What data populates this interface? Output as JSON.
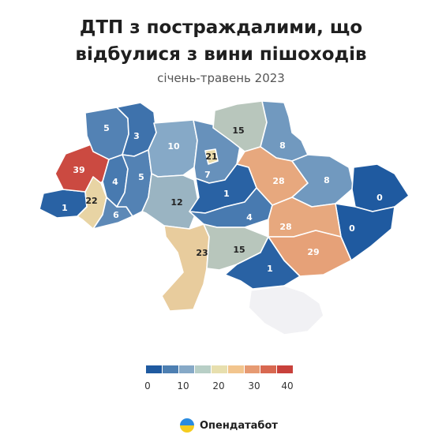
{
  "header": {
    "title_line1": "ДТП з постраждалими, що",
    "title_line2": "відбулися з вини пішоходів",
    "subtitle": "січень-травень 2023"
  },
  "legend": {
    "ticks": [
      "0",
      "10",
      "20",
      "30",
      "40"
    ],
    "colors": [
      "#1f5aa0",
      "#4d7fb2",
      "#86a9c7",
      "#b8cfc6",
      "#e7dfae",
      "#f2c58e",
      "#e69a72",
      "#d86850",
      "#c8413b"
    ]
  },
  "brand": {
    "name": "Опендатабот"
  },
  "scale": {
    "min": 0,
    "max": 40
  },
  "map_data": {
    "regions": [
      {
        "id": "zakarpattia",
        "value": 1
      },
      {
        "id": "lviv",
        "value": 39
      },
      {
        "id": "volyn",
        "value": 5
      },
      {
        "id": "rivne",
        "value": 3
      },
      {
        "id": "ternopil",
        "value": 4
      },
      {
        "id": "ivano-frankivsk",
        "value": 22
      },
      {
        "id": "chernivtsi",
        "value": 6
      },
      {
        "id": "khmelnytskyi",
        "value": 5
      },
      {
        "id": "zhytomyr",
        "value": 10
      },
      {
        "id": "vinnytsia",
        "value": 12
      },
      {
        "id": "kyiv-city",
        "value": 21
      },
      {
        "id": "kyiv",
        "value": 7
      },
      {
        "id": "chernihiv",
        "value": 15
      },
      {
        "id": "sumy",
        "value": 8
      },
      {
        "id": "poltava",
        "value": 28
      },
      {
        "id": "kharkiv",
        "value": 8
      },
      {
        "id": "luhansk",
        "value": 0
      },
      {
        "id": "donetsk",
        "value": 0
      },
      {
        "id": "cherkasy",
        "value": 1
      },
      {
        "id": "kirovohrad",
        "value": 4
      },
      {
        "id": "dnipropetrovsk",
        "value": 28
      },
      {
        "id": "zaporizhzhia",
        "value": 29
      },
      {
        "id": "odesa",
        "value": 23
      },
      {
        "id": "mykolaiv",
        "value": 15
      },
      {
        "id": "kherson",
        "value": 1
      },
      {
        "id": "crimea",
        "value": null
      }
    ]
  }
}
